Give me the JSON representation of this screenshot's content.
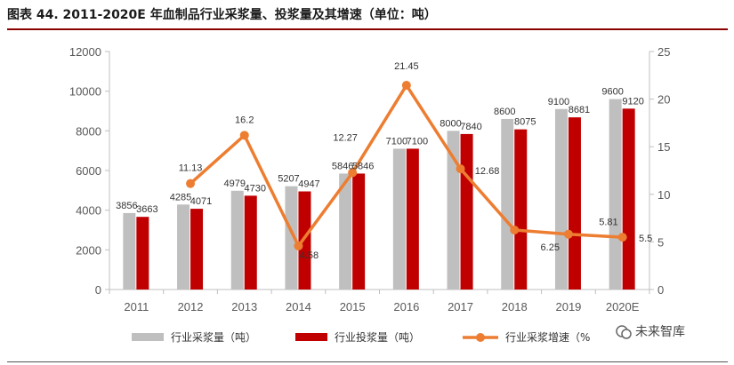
{
  "title": "图表 44. 2011-2020E 年血制品行业采浆量、投浆量及其增速（单位：吨）",
  "watermark": "未来智库",
  "colors": {
    "collect": "#bfbfbf",
    "invest": "#c00000",
    "growth": "#ed7d31"
  },
  "chart_data": {
    "type": "bar",
    "categories": [
      "2011",
      "2012",
      "2013",
      "2014",
      "2015",
      "2016",
      "2017",
      "2018",
      "2019",
      "2020E"
    ],
    "series": [
      {
        "name": "行业采浆量（吨）",
        "type": "bar",
        "axis": "left",
        "values": [
          3856,
          4285,
          4979,
          5207,
          5846,
          7100,
          8000,
          8600,
          9100,
          9600
        ]
      },
      {
        "name": "行业投浆量（吨）",
        "type": "bar",
        "axis": "left",
        "values": [
          3663,
          4071,
          4730,
          4947,
          5846,
          7100,
          7840,
          8075,
          8681,
          9120
        ]
      },
      {
        "name": "行业采浆增速（%",
        "type": "line",
        "axis": "right",
        "values": [
          null,
          11.13,
          16.2,
          4.58,
          12.27,
          21.45,
          12.68,
          6.25,
          5.81,
          5.49
        ]
      }
    ],
    "growth_labels": [
      "",
      "11.13",
      "16.2",
      "4.58",
      "12.27",
      "21.45",
      "12.68",
      "6.25",
      "5.81",
      "5.5"
    ],
    "ylim_left": [
      0,
      12000
    ],
    "yticks_left": [
      "0",
      "2000",
      "4000",
      "6000",
      "8000",
      "10000",
      "12000"
    ],
    "ylim_right": [
      0,
      25
    ],
    "yticks_right": [
      "0",
      "5",
      "10",
      "15",
      "20",
      "25"
    ],
    "legend_position": "bottom"
  }
}
